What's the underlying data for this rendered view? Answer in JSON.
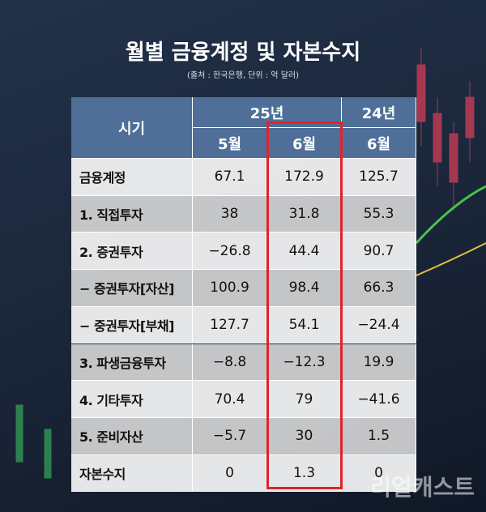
{
  "header": {
    "title": "월별 금융계정 및 자본수지",
    "subtitle": "(출처 : 한국은행, 단위 : 억 달러)"
  },
  "table": {
    "period_label": "시기",
    "years": [
      "25년",
      "24년"
    ],
    "months": [
      "5월",
      "6월",
      "6월"
    ],
    "rows": [
      [
        "금융계정",
        "67.1",
        "172.9",
        "125.7"
      ],
      [
        "1. 직접투자",
        "38",
        "31.8",
        "55.3"
      ],
      [
        "2. 증권투자",
        "−26.8",
        "44.4",
        "90.7"
      ],
      [
        "− 증권투자[자산]",
        "100.9",
        "98.4",
        "66.3"
      ],
      [
        "− 중권투자[부채]",
        "127.7",
        "54.1",
        "−24.4"
      ],
      [
        "3. 파생금융투자",
        "−8.8",
        "−12.3",
        "19.9"
      ],
      [
        "4. 기타투자",
        "70.4",
        "79",
        "−41.6"
      ],
      [
        "5. 준비자산",
        "−5.7",
        "30",
        "1.5"
      ],
      [
        "자본수지",
        "0",
        "1.3",
        "0"
      ]
    ]
  },
  "watermark": "리얼캐스트"
}
